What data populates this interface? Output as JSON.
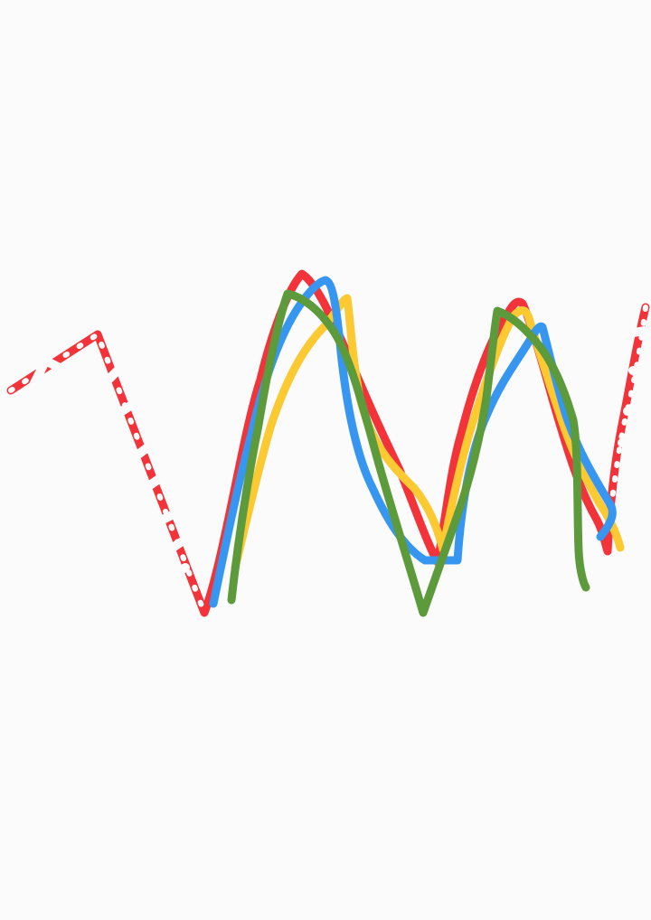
{
  "canvas": {
    "background": "#fbfbfb"
  },
  "strokes": [
    {
      "name": "red-stroke",
      "color": "#f2343a"
    },
    {
      "name": "yellow-stroke",
      "color": "#fbc932"
    },
    {
      "name": "blue-stroke",
      "color": "#3797f0"
    },
    {
      "name": "green-stroke",
      "color": "#5c9a3c"
    }
  ],
  "eraser_marks": [
    {
      "name": "left-eraser-mark"
    },
    {
      "name": "right-eraser-mark"
    }
  ]
}
